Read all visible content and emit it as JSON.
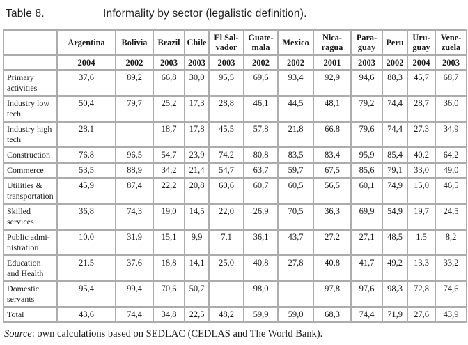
{
  "page": {
    "title_label": "Table 8.",
    "title_caption": "Informality by sector (legalistic definition).",
    "source_word": "Source",
    "source_rest": ": own calculations based on SEDLAC (CEDLAS and The World Bank)."
  },
  "colors": {
    "grid": "#acacac",
    "text": "#1a1a1a",
    "background": "#ffffff"
  },
  "table": {
    "corner": "",
    "columns": [
      {
        "name": "Argentina",
        "year": "2004"
      },
      {
        "name": "Bolivia",
        "year": "2002"
      },
      {
        "name": "Brazil",
        "year": "2003"
      },
      {
        "name": "Chile",
        "year": "2003"
      },
      {
        "name": "El Sal-\nvador",
        "year": "2003"
      },
      {
        "name": "Guate-\nmala",
        "year": "2002"
      },
      {
        "name": "Mexico",
        "year": "2002"
      },
      {
        "name": "Nica-\nragua",
        "year": "2001"
      },
      {
        "name": "Para-\nguay",
        "year": "2003"
      },
      {
        "name": "Peru",
        "year": "2002"
      },
      {
        "name": "Uru-\nguay",
        "year": "2004"
      },
      {
        "name": "Vene-\nzuela",
        "year": "2003"
      }
    ],
    "rows": [
      {
        "label": "Primary\nactivities",
        "values": [
          "37,6",
          "89,2",
          "66,8",
          "30,0",
          "95,5",
          "69,6",
          "93,4",
          "92,9",
          "94,6",
          "88,3",
          "45,7",
          "68,7"
        ]
      },
      {
        "label": "Industry low\ntech",
        "values": [
          "50,4",
          "79,7",
          "25,2",
          "17,3",
          "28,8",
          "46,1",
          "44,5",
          "48,1",
          "79,2",
          "74,4",
          "28,7",
          "36,0"
        ]
      },
      {
        "label": "Industry high\ntech",
        "values": [
          "28,1",
          "",
          "18,7",
          "17,8",
          "45,5",
          "57,8",
          "21,8",
          "66,8",
          "79,6",
          "74,4",
          "27,3",
          "34,9"
        ]
      },
      {
        "label": "Construction",
        "values": [
          "76,8",
          "96,5",
          "54,7",
          "23,9",
          "74,2",
          "80,8",
          "83,5",
          "83,4",
          "95,9",
          "85,4",
          "40,2",
          "64,2"
        ]
      },
      {
        "label": "Commerce",
        "values": [
          "53,5",
          "88,9",
          "34,2",
          "21,4",
          "54,7",
          "63,7",
          "59,7",
          "67,5",
          "85,6",
          "79,1",
          "33,0",
          "49,0"
        ]
      },
      {
        "label": "Utilities &\ntransportation",
        "values": [
          "45,9",
          "87,4",
          "22,2",
          "20,8",
          "60,6",
          "60,7",
          "60,5",
          "56,5",
          "60,1",
          "74,9",
          "15,0",
          "46,5"
        ]
      },
      {
        "label": "Skilled\nservices",
        "values": [
          "36,8",
          "74,3",
          "19,0",
          "14,5",
          "22,0",
          "26,9",
          "70,5",
          "36,3",
          "69,9",
          "54,9",
          "19,7",
          "24,5"
        ]
      },
      {
        "label": "Public admi-\nnistration",
        "values": [
          "10,0",
          "31,9",
          "15,1",
          "9,9",
          "7,1",
          "36,1",
          "43,7",
          "27,2",
          "27,1",
          "48,5",
          "1,5",
          "8,2"
        ]
      },
      {
        "label": "Education\nand Health",
        "values": [
          "21,5",
          "37,6",
          "18,8",
          "14,1",
          "25,0",
          "40,8",
          "27,8",
          "40,8",
          "41,7",
          "49,2",
          "13,3",
          "33,2"
        ]
      },
      {
        "label": "Domestic\nservants",
        "values": [
          "95,4",
          "99,4",
          "70,6",
          "50,7",
          "",
          "98,0",
          "",
          "97,8",
          "97,6",
          "98,3",
          "72,8",
          "74,6"
        ]
      },
      {
        "label": "Total",
        "values": [
          "43,6",
          "74,4",
          "34,8",
          "22,5",
          "48,2",
          "59,9",
          "59,0",
          "68,3",
          "74,4",
          "71,9",
          "27,6",
          "43,9"
        ]
      }
    ]
  }
}
